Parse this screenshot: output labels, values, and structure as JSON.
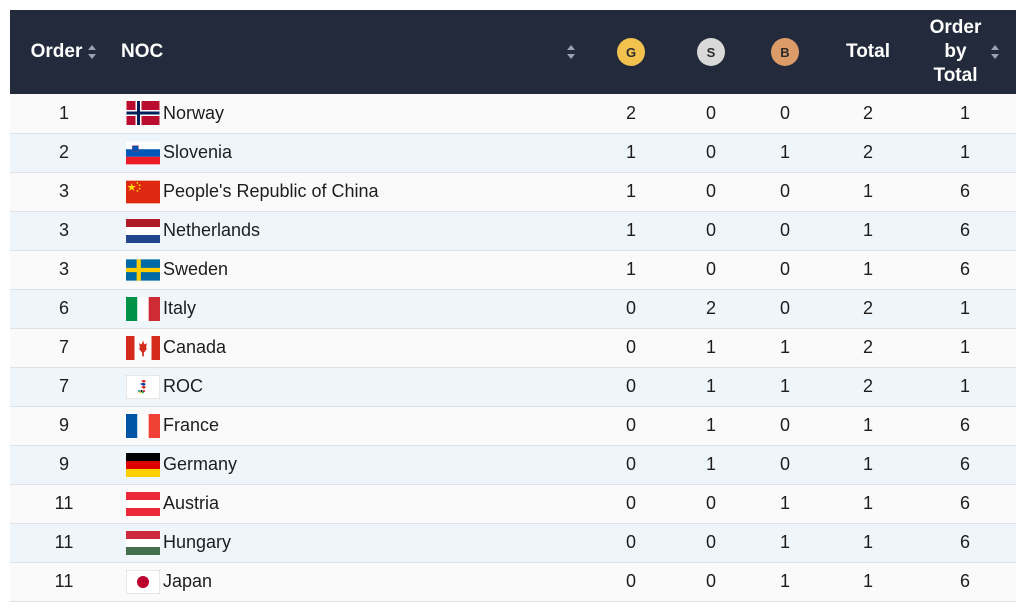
{
  "header": {
    "order": "Order",
    "noc": "NOC",
    "gold": "G",
    "silver": "S",
    "bronze": "B",
    "total": "Total",
    "order_by_total_line1": "Order",
    "order_by_total_line2": "by",
    "order_by_total_line3": "Total"
  },
  "colors": {
    "header_bg": "#232a3b",
    "gold": "#f2c14e",
    "silver": "#d9d9d9",
    "bronze": "#dd9b6a",
    "row_alt": "#eef6fc"
  },
  "rows": [
    {
      "order": "1",
      "noc": "Norway",
      "flag": "norway-flag-icon",
      "g": "2",
      "s": "0",
      "b": "0",
      "total": "2",
      "obt": "1"
    },
    {
      "order": "2",
      "noc": "Slovenia",
      "flag": "slovenia-flag-icon",
      "g": "1",
      "s": "0",
      "b": "1",
      "total": "2",
      "obt": "1"
    },
    {
      "order": "3",
      "noc": "People's Republic of China",
      "flag": "china-flag-icon",
      "g": "1",
      "s": "0",
      "b": "0",
      "total": "1",
      "obt": "6"
    },
    {
      "order": "3",
      "noc": "Netherlands",
      "flag": "netherlands-flag-icon",
      "g": "1",
      "s": "0",
      "b": "0",
      "total": "1",
      "obt": "6"
    },
    {
      "order": "3",
      "noc": "Sweden",
      "flag": "sweden-flag-icon",
      "g": "1",
      "s": "0",
      "b": "0",
      "total": "1",
      "obt": "6"
    },
    {
      "order": "6",
      "noc": "Italy",
      "flag": "italy-flag-icon",
      "g": "0",
      "s": "2",
      "b": "0",
      "total": "2",
      "obt": "1"
    },
    {
      "order": "7",
      "noc": "Canada",
      "flag": "canada-flag-icon",
      "g": "0",
      "s": "1",
      "b": "1",
      "total": "2",
      "obt": "1"
    },
    {
      "order": "7",
      "noc": "ROC",
      "flag": "roc-flag-icon",
      "g": "0",
      "s": "1",
      "b": "1",
      "total": "2",
      "obt": "1"
    },
    {
      "order": "9",
      "noc": "France",
      "flag": "france-flag-icon",
      "g": "0",
      "s": "1",
      "b": "0",
      "total": "1",
      "obt": "6"
    },
    {
      "order": "9",
      "noc": "Germany",
      "flag": "germany-flag-icon",
      "g": "0",
      "s": "1",
      "b": "0",
      "total": "1",
      "obt": "6"
    },
    {
      "order": "11",
      "noc": "Austria",
      "flag": "austria-flag-icon",
      "g": "0",
      "s": "0",
      "b": "1",
      "total": "1",
      "obt": "6"
    },
    {
      "order": "11",
      "noc": "Hungary",
      "flag": "hungary-flag-icon",
      "g": "0",
      "s": "0",
      "b": "1",
      "total": "1",
      "obt": "6"
    },
    {
      "order": "11",
      "noc": "Japan",
      "flag": "japan-flag-icon",
      "g": "0",
      "s": "0",
      "b": "1",
      "total": "1",
      "obt": "6"
    }
  ]
}
